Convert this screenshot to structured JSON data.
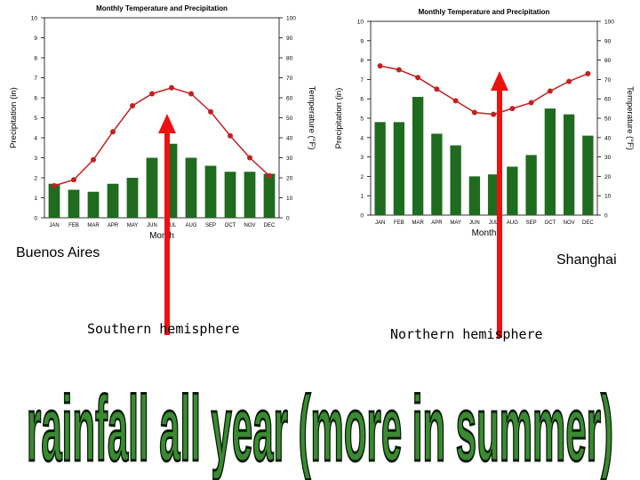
{
  "chart_data": [
    {
      "type": "bar+line",
      "title": "Monthly Temperature and Precipitation",
      "xlabel": "Month",
      "ylabel": "Precipitation (in)",
      "y2label": "Temperature (°F)",
      "ylim": [
        0,
        10
      ],
      "y2lim": [
        0,
        100
      ],
      "yticks": [
        "0",
        "1",
        "2",
        "3",
        "4",
        "5",
        "6",
        "7",
        "8",
        "9",
        "10"
      ],
      "y2ticks": [
        "0",
        "10",
        "20",
        "30",
        "40",
        "50",
        "60",
        "70",
        "80",
        "90",
        "100"
      ],
      "categories": [
        "JAN",
        "FEB",
        "MAR",
        "APR",
        "MAY",
        "JUN",
        "JUL",
        "AUG",
        "SEP",
        "OCT",
        "NOV",
        "DEC"
      ],
      "series": [
        {
          "type": "bar",
          "axis": "left",
          "values": [
            1.7,
            1.4,
            1.3,
            1.7,
            2.0,
            3.0,
            3.7,
            3.0,
            2.6,
            2.3,
            2.3,
            2.2
          ]
        },
        {
          "type": "line",
          "axis": "right",
          "values": [
            16,
            19,
            29,
            43,
            56,
            62,
            65,
            62,
            53,
            41,
            30,
            21
          ]
        }
      ],
      "grid": false,
      "bar_color": "#1f6b1f",
      "line_color": "#c42020"
    },
    {
      "type": "bar+line",
      "title": "Monthly Temperature and Precipitation",
      "xlabel": "Month",
      "ylabel": "Precipitation (in)",
      "y2label": "Temperature (°F)",
      "ylim": [
        0,
        10
      ],
      "y2lim": [
        0,
        100
      ],
      "yticks": [
        "0",
        "1",
        "2",
        "3",
        "4",
        "5",
        "6",
        "7",
        "8",
        "9",
        "10"
      ],
      "y2ticks": [
        "0",
        "10",
        "20",
        "30",
        "40",
        "50",
        "60",
        "70",
        "80",
        "90",
        "100"
      ],
      "categories": [
        "JAN",
        "FEB",
        "MAR",
        "APR",
        "MAY",
        "JUN",
        "JUL",
        "AUG",
        "SEP",
        "OCT",
        "NOV",
        "DEC"
      ],
      "series": [
        {
          "type": "bar",
          "axis": "left",
          "values": [
            4.8,
            4.8,
            6.1,
            4.2,
            3.6,
            2.0,
            2.1,
            2.5,
            3.1,
            5.5,
            5.2,
            4.1
          ]
        },
        {
          "type": "line",
          "axis": "right",
          "values": [
            77,
            75,
            71,
            65,
            59,
            53,
            52,
            55,
            58,
            64,
            69,
            73
          ]
        }
      ],
      "grid": false,
      "bar_color": "#1f6b1f",
      "line_color": "#c42020"
    }
  ],
  "labels": {
    "city_left": "Buenos Aires",
    "city_right": "Shanghai",
    "hemisphere_left": "Southern hemisphere",
    "hemisphere_right": "Northern hemisphere",
    "headline": "rainfall all year (more in summer)"
  },
  "colors": {
    "arrow": "#ee1111",
    "headline_fill": "#3a8a32",
    "headline_stroke": "#0a1a0a"
  }
}
